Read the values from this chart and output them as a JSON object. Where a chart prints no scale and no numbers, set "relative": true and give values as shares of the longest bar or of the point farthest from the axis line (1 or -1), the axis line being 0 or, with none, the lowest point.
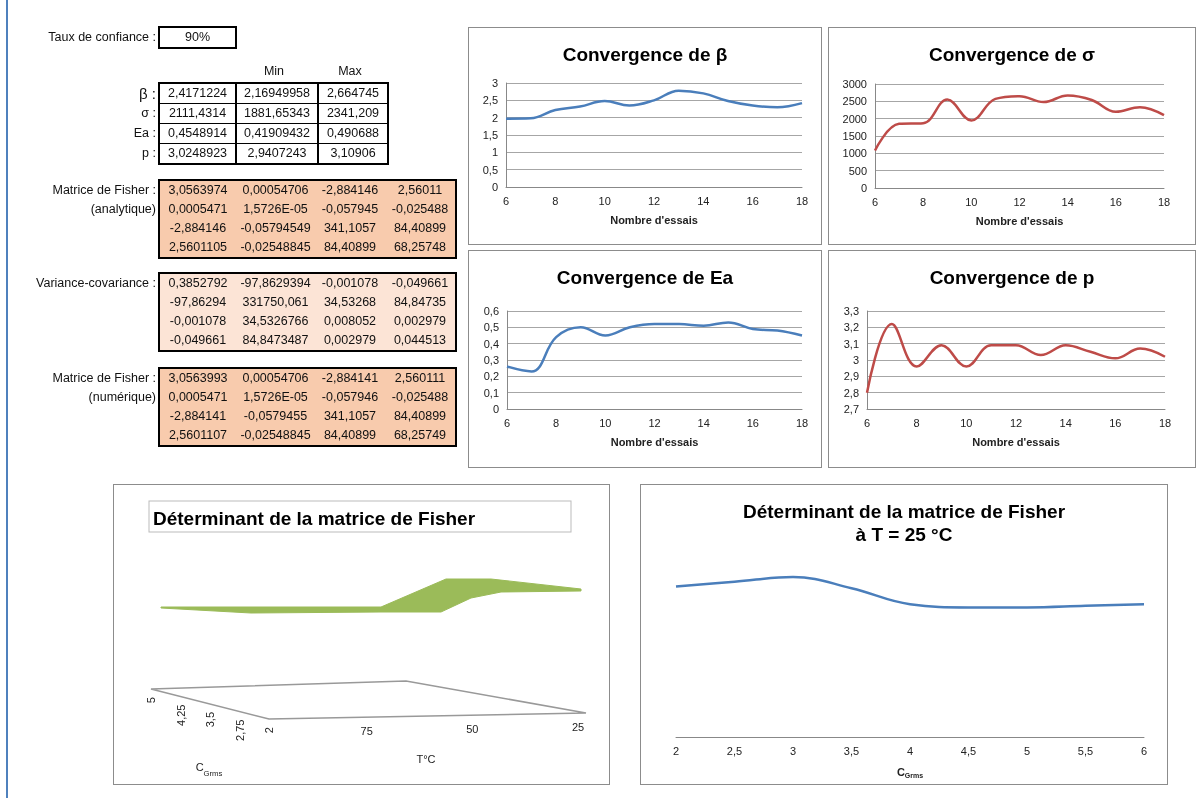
{
  "chart_data": [
    {
      "type": "other",
      "y_categories": [
        "Taux de confiance :"
      ],
      "cell_labels": [
        [
          "90%"
        ]
      ]
    },
    {
      "type": "other",
      "categories": [
        null,
        "Min",
        "Max"
      ],
      "y_categories": [
        "β :",
        "σ :",
        "Ea :",
        "p :"
      ],
      "cell_labels": [
        [
          "2,4171224",
          "2,16949958",
          "2,664745"
        ],
        [
          "2111,4314",
          "1881,65343",
          "2341,209"
        ],
        [
          "0,4548914",
          "0,41909432",
          "0,490688"
        ],
        [
          "3,0248923",
          "2,9407243",
          "3,10906"
        ]
      ]
    },
    {
      "type": "other",
      "y_categories": [
        "Matrice de Fisher :",
        "(analytique)",
        null,
        null
      ],
      "color": "#f8cbad",
      "cell_labels": [
        [
          "3,0563974",
          "0,00054706",
          "-2,884146",
          "2,56011"
        ],
        [
          "0,0005471",
          "1,5726E-05",
          "-0,057945",
          "-0,025488"
        ],
        [
          "-2,884146",
          "-0,05794549",
          "341,1057",
          "84,40899"
        ],
        [
          "2,5601105",
          "-0,02548845",
          "84,40899",
          "68,25748"
        ]
      ]
    },
    {
      "type": "other",
      "y_categories": [
        "Variance-covariance :",
        null,
        null,
        null
      ],
      "color": "#fce4d6",
      "cell_labels": [
        [
          "0,3852792",
          "-97,8629394",
          "-0,001078",
          "-0,049661"
        ],
        [
          "-97,86294",
          "331750,061",
          "34,53268",
          "84,84735"
        ],
        [
          "-0,001078",
          "34,5326766",
          "0,008052",
          "0,002979"
        ],
        [
          "-0,049661",
          "84,8473487",
          "0,002979",
          "0,044513"
        ]
      ]
    },
    {
      "type": "other",
      "y_categories": [
        "Matrice de Fisher :",
        "(numérique)",
        null,
        null
      ],
      "color": "#f8cbad",
      "cell_labels": [
        [
          "3,0563993",
          "0,00054706",
          "-2,884141",
          "2,560111"
        ],
        [
          "0,0005471",
          "1,5726E-05",
          "-0,057946",
          "-0,025488"
        ],
        [
          "-2,884141",
          "-0,0579455",
          "341,1057",
          "84,40899"
        ],
        [
          "2,5601107",
          "-0,02548845",
          "84,40899",
          "68,25749"
        ]
      ]
    },
    {
      "type": "line",
      "title": "Convergence de β",
      "xlabel": "Nombre d'essais",
      "x": [
        6,
        7,
        8,
        9,
        10,
        11,
        12,
        13,
        14,
        15,
        16,
        17,
        18
      ],
      "series": [
        {
          "color": "#4a7ebb",
          "values": [
            1.97,
            1.98,
            2.22,
            2.32,
            2.48,
            2.35,
            2.5,
            2.78,
            2.7,
            2.48,
            2.35,
            2.3,
            2.42
          ]
        }
      ],
      "xlim": [
        6,
        18
      ],
      "xticks": [
        6,
        8,
        10,
        12,
        14,
        16,
        18
      ],
      "ylim": [
        0,
        3
      ],
      "yticks": [
        0,
        {
          "value": 0.5,
          "label": "0,5"
        },
        1,
        {
          "value": 1.5,
          "label": "1,5"
        },
        2,
        {
          "value": 2.5,
          "label": "2,5"
        },
        3
      ],
      "grid": "y"
    },
    {
      "type": "line",
      "title": "Convergence de σ",
      "xlabel": "Nombre d'essais",
      "x": [
        6,
        7,
        8,
        9,
        10,
        11,
        12,
        13,
        14,
        15,
        16,
        17,
        18
      ],
      "series": [
        {
          "color": "#be4b48",
          "values": [
            1080,
            1850,
            1870,
            2550,
            1950,
            2570,
            2650,
            2480,
            2670,
            2540,
            2200,
            2330,
            2100
          ]
        }
      ],
      "xlim": [
        6,
        18
      ],
      "xticks": [
        6,
        8,
        10,
        12,
        14,
        16,
        18
      ],
      "ylim": [
        0,
        3000
      ],
      "yticks": [
        0,
        500,
        1000,
        1500,
        2000,
        2500,
        3000
      ],
      "grid": "y"
    },
    {
      "type": "line",
      "title": "Convergence de Ea",
      "xlabel": "Nombre d'essais",
      "x": [
        6,
        7,
        8,
        9,
        10,
        11,
        12,
        13,
        14,
        15,
        16,
        17,
        18
      ],
      "series": [
        {
          "color": "#4a7ebb",
          "values": [
            0.26,
            0.23,
            0.44,
            0.5,
            0.45,
            0.5,
            0.52,
            0.52,
            0.51,
            0.53,
            0.49,
            0.48,
            0.45
          ]
        }
      ],
      "xlim": [
        6,
        18
      ],
      "xticks": [
        6,
        8,
        10,
        12,
        14,
        16,
        18
      ],
      "ylim": [
        0,
        0.6
      ],
      "yticks": [
        0,
        {
          "value": 0.1,
          "label": "0,1"
        },
        {
          "value": 0.2,
          "label": "0,2"
        },
        {
          "value": 0.3,
          "label": "0,3"
        },
        {
          "value": 0.4,
          "label": "0,4"
        },
        {
          "value": 0.5,
          "label": "0,5"
        },
        {
          "value": 0.6,
          "label": "0,6"
        }
      ],
      "grid": "y"
    },
    {
      "type": "line",
      "title": "Convergence de p",
      "xlabel": "Nombre d'essais",
      "x": [
        6,
        7,
        8,
        9,
        10,
        11,
        12,
        13,
        14,
        15,
        16,
        17,
        18
      ],
      "series": [
        {
          "color": "#be4b48",
          "values": [
            2.8,
            3.22,
            2.96,
            3.09,
            2.96,
            3.09,
            3.09,
            3.03,
            3.09,
            3.05,
            3.01,
            3.07,
            3.02
          ]
        }
      ],
      "xlim": [
        6,
        18
      ],
      "xticks": [
        6,
        8,
        10,
        12,
        14,
        16,
        18
      ],
      "ylim": [
        2.7,
        3.3
      ],
      "yticks": [
        {
          "value": 2.7,
          "label": "2,7"
        },
        {
          "value": 2.8,
          "label": "2,8"
        },
        {
          "value": 2.9,
          "label": "2,9"
        },
        3,
        {
          "value": 3.1,
          "label": "3,1"
        },
        {
          "value": 3.2,
          "label": "3,2"
        },
        {
          "value": 3.3,
          "label": "3,3"
        }
      ],
      "grid": "y"
    },
    {
      "type": "other",
      "title": "Déterminant de la matrice de Fisher",
      "xlabel": "T°C",
      "ylabel": "C$_{Grms}$",
      "color": "#9bbb59",
      "categories": [
        "75",
        "50",
        "25"
      ],
      "y_categories": [
        "5",
        "4,25",
        "3,5",
        "2,75",
        "2"
      ]
    },
    {
      "type": "line",
      "title": "Déterminant de la matrice de Fisher",
      "subtitle": "à T = 25 °C",
      "xlabel": "C$_{Grms}$",
      "relative": true,
      "x": [
        2,
        2.5,
        3,
        3.5,
        4,
        4.5,
        5,
        5.5,
        6
      ],
      "series": [
        {
          "color": "#4a7ebb",
          "values": [
            0.94,
            0.97,
            1.0,
            0.93,
            0.83,
            0.81,
            0.81,
            0.82,
            0.83
          ]
        }
      ],
      "xlim": [
        2,
        6
      ],
      "xticks": [
        2,
        {
          "value": 2.5,
          "label": "2,5"
        },
        3,
        {
          "value": 3.5,
          "label": "3,5"
        },
        4,
        {
          "value": 4.5,
          "label": "4,5"
        },
        5,
        {
          "value": 5.5,
          "label": "5,5"
        },
        6
      ]
    }
  ]
}
